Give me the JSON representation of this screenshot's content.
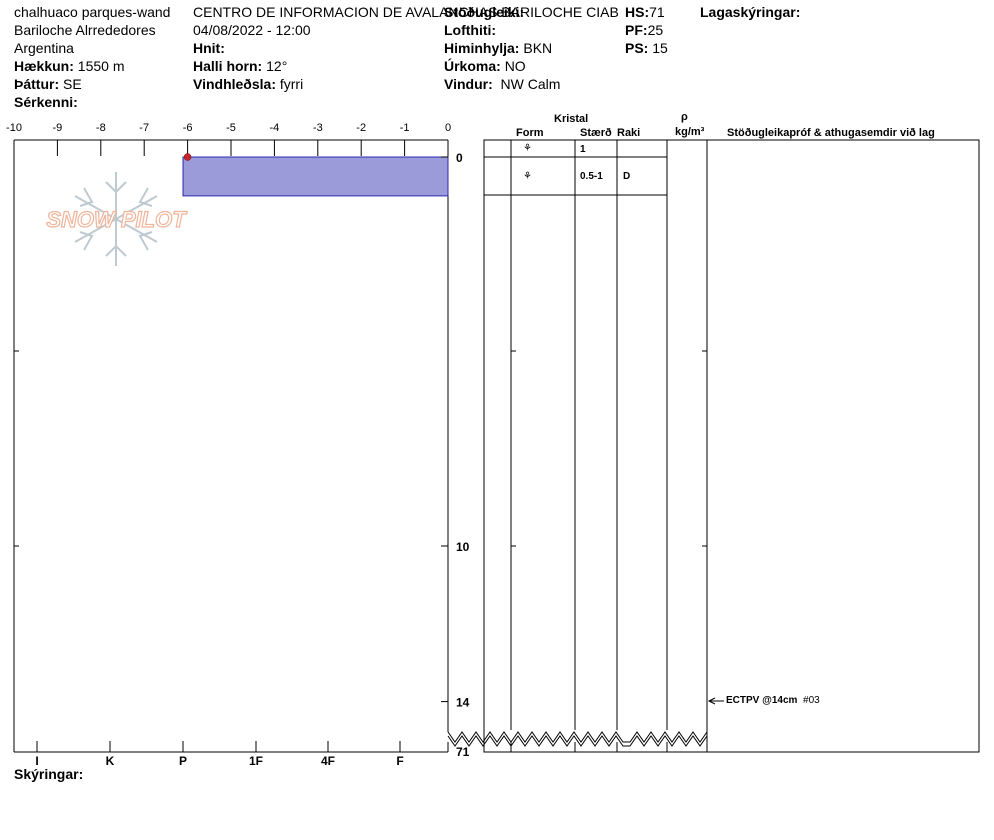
{
  "header": {
    "col1": {
      "location": "chalhuaco parques-wand",
      "region": "Bariloche Alrrededores",
      "country": "Argentina",
      "elevation_label": "Hækkun:",
      "elevation_value": "1550 m",
      "aspect_label": "Þáttur:",
      "aspect_value": "SE",
      "features_label": "Sérkenni:"
    },
    "col2": {
      "organization": "CENTRO DE INFORMACION DE AVALANCHAS BARILOCHE CIAB",
      "datetime": "04/08/2022 - 12:00",
      "coords_label": "Hnit:",
      "slope_label": "Halli horn:",
      "slope_value": "12°",
      "wind_loading_label": "Vindhleðsla:",
      "wind_loading_value": "fyrri"
    },
    "col3": {
      "stability_label": "Stöðugleiki:",
      "air_temp_label": "Lofthiti:",
      "sky_label": "Himinhylja:",
      "sky_value": "BKN",
      "precip_label": "Úrkoma:",
      "precip_value": "NO",
      "wind_label": "Vindur:",
      "wind_value": "NW Calm"
    },
    "col4": {
      "hs_label": "HS:",
      "hs_value": "71",
      "pf_label": "PF:",
      "pf_value": "25",
      "ps_label": "PS:",
      "ps_value": "15"
    },
    "layers_label": "Lagaskýringar:"
  },
  "watermark": "SNOW PILOT",
  "legend_label": "Skýringar:",
  "chart_data": {
    "type": "snow-profile",
    "temperature_axis": {
      "ticks": [
        "-10",
        "-9",
        "-8",
        "-7",
        "-6",
        "-5",
        "-4",
        "-3",
        "-2",
        "-1",
        "0"
      ],
      "range": [
        -10,
        0
      ]
    },
    "hardness_axis": {
      "ticks": [
        "I",
        "K",
        "P",
        "1F",
        "4F",
        "F"
      ]
    },
    "depth_axis": {
      "ticks": [
        "0",
        "10",
        "14"
      ],
      "bottom_label": "71"
    },
    "temperature_points": [
      {
        "temp": -6,
        "depth": 0
      }
    ],
    "hardness_layers": [
      {
        "top": 0,
        "bottom": 1,
        "hardness": "P"
      }
    ],
    "layer_table": {
      "group_header": "Kristal",
      "headers": {
        "form": "Form",
        "size": "Stærð",
        "moisture": "Raki",
        "density_symbol": "ρ",
        "density_unit": "kg/m³",
        "comments": "Stöðugleikapróf & athugasemdir við lag"
      },
      "rows": [
        {
          "form_icon": "⚘",
          "size": "1",
          "moisture": ""
        },
        {
          "form_icon": "⚘",
          "size": "0.5-1",
          "moisture": "D"
        }
      ]
    },
    "stability_tests": [
      {
        "depth": 14,
        "result": "ECTPV @14cm",
        "number": "#03"
      }
    ]
  }
}
